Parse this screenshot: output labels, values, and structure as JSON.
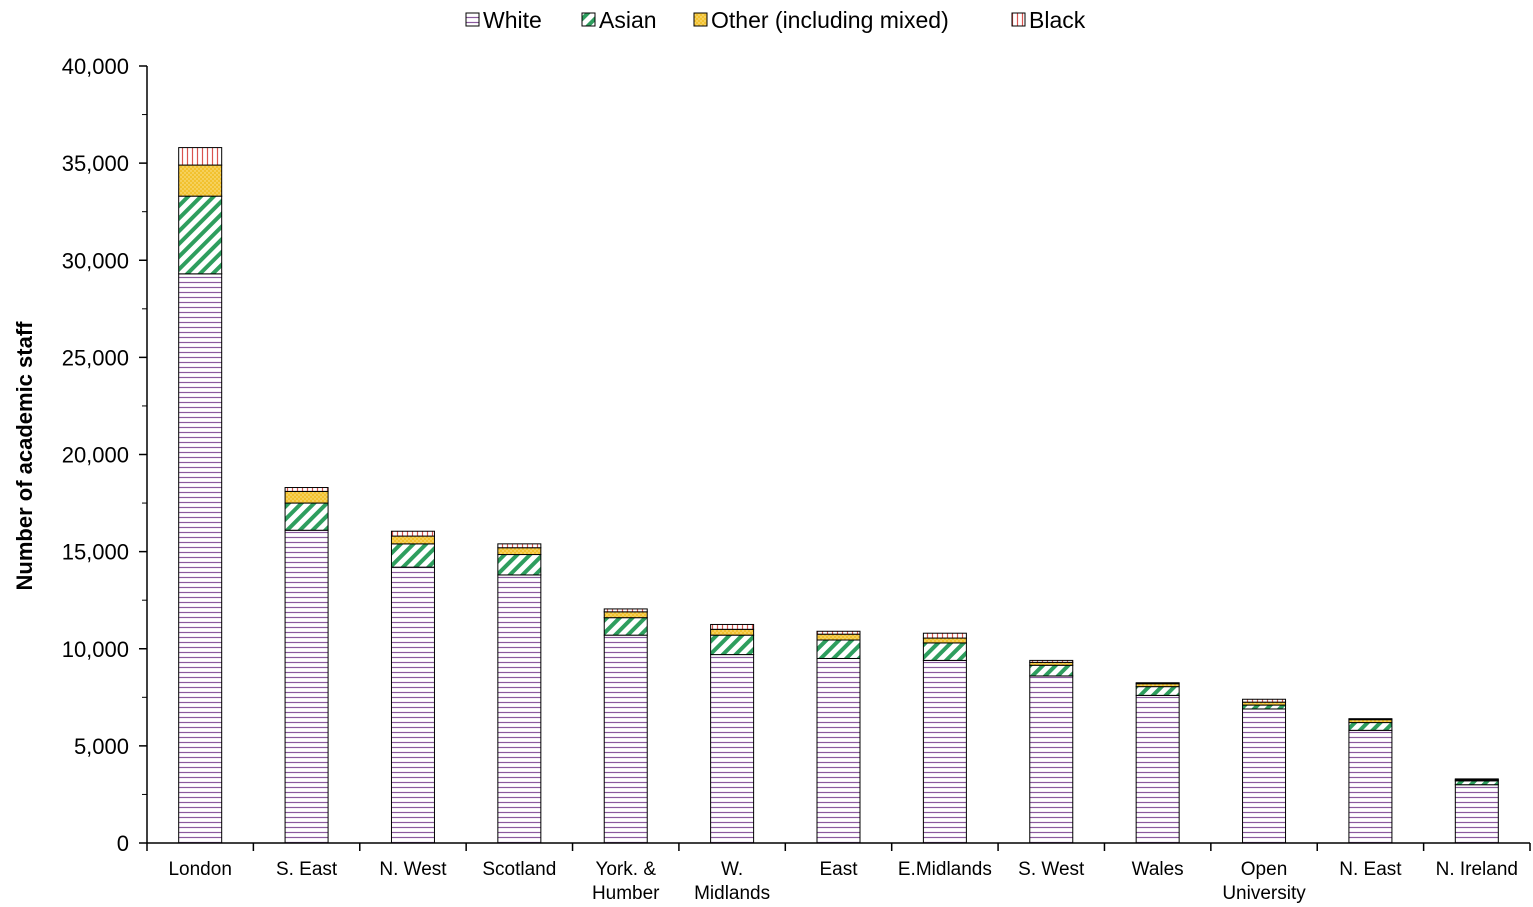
{
  "chart_data": {
    "type": "bar",
    "stacked": true,
    "title": "",
    "xlabel": "",
    "ylabel": "Number of academic staff",
    "ylim": [
      0,
      40000
    ],
    "yticks": [
      "0",
      "5,000",
      "10,000",
      "15,000",
      "20,000",
      "25,000",
      "30,000",
      "35,000",
      "40,000"
    ],
    "ytick_values": [
      0,
      5000,
      10000,
      15000,
      20000,
      25000,
      30000,
      35000,
      40000
    ],
    "legend_position": "top",
    "grid": false,
    "categories": [
      [
        "London"
      ],
      [
        "S. East"
      ],
      [
        "N. West"
      ],
      [
        "Scotland"
      ],
      [
        "York. &",
        "Humber"
      ],
      [
        "W.",
        "Midlands"
      ],
      [
        "East"
      ],
      [
        "E.Midlands"
      ],
      [
        "S. West"
      ],
      [
        "Wales"
      ],
      [
        "Open",
        "University"
      ],
      [
        "N. East"
      ],
      [
        "N. Ireland"
      ]
    ],
    "series": [
      {
        "name": "White",
        "color": "#c8a8d8",
        "pattern": "horizontal-lines",
        "values": [
          29300,
          16100,
          14200,
          13800,
          10700,
          9700,
          9500,
          9400,
          8600,
          7600,
          6900,
          5800,
          3000
        ]
      },
      {
        "name": "Asian",
        "color": "#2e9e5e",
        "pattern": "diagonal-stripes",
        "values": [
          4000,
          1400,
          1200,
          1050,
          900,
          1000,
          950,
          900,
          550,
          450,
          200,
          400,
          200
        ]
      },
      {
        "name": "Other (including mixed)",
        "color": "#f2c12e",
        "pattern": "dotted",
        "values": [
          1600,
          600,
          400,
          350,
          300,
          300,
          300,
          250,
          150,
          150,
          150,
          150,
          50
        ]
      },
      {
        "name": "Black",
        "color": "#e6a0a0",
        "pattern": "vertical-lines",
        "values": [
          900,
          200,
          250,
          200,
          150,
          250,
          150,
          250,
          100,
          50,
          150,
          50,
          50
        ]
      }
    ]
  }
}
